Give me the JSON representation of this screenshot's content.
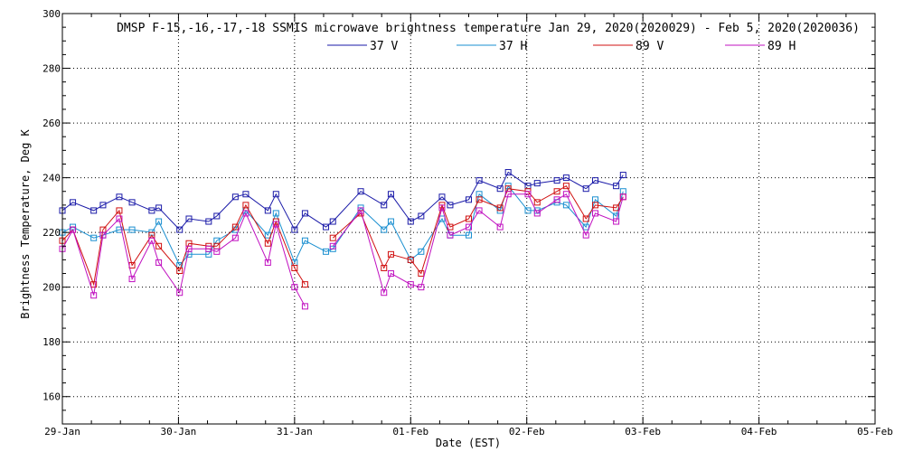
{
  "chart_data": {
    "type": "line",
    "title": "DMSP F-15,-16,-17,-18 SSMIS microwave brightness temperature Jan 29, 2020(2020029) - Feb  5, 2020(2020036)",
    "xlabel": "Date (EST)",
    "ylabel": "Brightness Temperature, Deg K",
    "xlim": [
      0,
      7
    ],
    "ylim": [
      150,
      300
    ],
    "xticks": [
      0,
      1,
      2,
      3,
      4,
      5,
      6,
      7
    ],
    "xtick_labels": [
      "29-Jan",
      "30-Jan",
      "31-Jan",
      "01-Feb",
      "02-Feb",
      "03-Feb",
      "04-Feb",
      "05-Feb"
    ],
    "yticks": [
      160,
      180,
      200,
      220,
      240,
      260,
      280,
      300
    ],
    "ytick_labels": [
      "160",
      "180",
      "200",
      "220",
      "240",
      "260",
      "280",
      "300"
    ],
    "grid": true,
    "legend_position": "top",
    "series": [
      {
        "name": "37 V",
        "color": "#1a1aa8",
        "segments": [
          [
            [
              0.0,
              228
            ],
            [
              0.09,
              231
            ],
            [
              0.27,
              228
            ],
            [
              0.35,
              230
            ],
            [
              0.49,
              233
            ],
            [
              0.6,
              231
            ],
            [
              0.77,
              228
            ],
            [
              0.83,
              229
            ],
            [
              1.01,
              221
            ],
            [
              1.09,
              225
            ],
            [
              1.26,
              224
            ],
            [
              1.33,
              226
            ],
            [
              1.49,
              233
            ],
            [
              1.58,
              234
            ],
            [
              1.77,
              228
            ],
            [
              1.84,
              234
            ],
            [
              2.0,
              221
            ],
            [
              2.09,
              227
            ],
            [
              2.27,
              222
            ],
            [
              2.33,
              224
            ],
            [
              2.57,
              235
            ],
            [
              2.77,
              230
            ],
            [
              2.83,
              234
            ],
            [
              3.0,
              224
            ],
            [
              3.09,
              226
            ],
            [
              3.27,
              233
            ],
            [
              3.34,
              230
            ],
            [
              3.5,
              232
            ],
            [
              3.59,
              239
            ],
            [
              3.77,
              236
            ],
            [
              3.84,
              242
            ],
            [
              4.01,
              237
            ],
            [
              4.09,
              238
            ],
            [
              4.26,
              239
            ],
            [
              4.34,
              240
            ],
            [
              4.51,
              236
            ],
            [
              4.59,
              239
            ],
            [
              4.77,
              237
            ],
            [
              4.83,
              241
            ]
          ]
        ]
      },
      {
        "name": "37 H",
        "color": "#1a8fd0",
        "segments": [
          [
            [
              0.0,
              220
            ],
            [
              0.09,
              222
            ],
            [
              0.27,
              218
            ],
            [
              0.35,
              219
            ],
            [
              0.49,
              221
            ],
            [
              0.6,
              221
            ],
            [
              0.77,
              220
            ],
            [
              0.83,
              224
            ],
            [
              1.01,
              208
            ],
            [
              1.09,
              212
            ],
            [
              1.26,
              212
            ],
            [
              1.33,
              217
            ],
            [
              1.49,
              221
            ],
            [
              1.58,
              228
            ],
            [
              1.77,
              219
            ],
            [
              1.84,
              227
            ],
            [
              2.0,
              209
            ],
            [
              2.09,
              217
            ],
            [
              2.27,
              213
            ],
            [
              2.33,
              214
            ],
            [
              2.57,
              229
            ],
            [
              2.77,
              221
            ],
            [
              2.83,
              224
            ],
            [
              3.0,
              210
            ],
            [
              3.09,
              213
            ],
            [
              3.27,
              225
            ],
            [
              3.34,
              219
            ],
            [
              3.5,
              219
            ],
            [
              3.59,
              234
            ],
            [
              3.77,
              228
            ],
            [
              3.84,
              237
            ],
            [
              4.01,
              228
            ],
            [
              4.09,
              228
            ],
            [
              4.26,
              231
            ],
            [
              4.34,
              230
            ],
            [
              4.51,
              222
            ],
            [
              4.59,
              232
            ],
            [
              4.77,
              226
            ],
            [
              4.83,
              235
            ]
          ]
        ]
      },
      {
        "name": "89 V",
        "color": "#d01010",
        "segments": [
          [
            [
              0.0,
              217
            ],
            [
              0.09,
              221
            ],
            [
              0.27,
              201
            ],
            [
              0.35,
              221
            ],
            [
              0.49,
              228
            ],
            [
              0.6,
              208
            ],
            [
              0.77,
              219
            ],
            [
              0.83,
              215
            ],
            [
              1.01,
              206
            ],
            [
              1.09,
              216
            ],
            [
              1.26,
              215
            ],
            [
              1.33,
              215
            ],
            [
              1.49,
              222
            ],
            [
              1.58,
              230
            ],
            [
              1.77,
              216
            ],
            [
              1.84,
              224
            ],
            [
              2.0,
              207
            ],
            [
              2.09,
              201
            ]
          ],
          [
            [
              2.33,
              218
            ],
            [
              2.57,
              227
            ],
            [
              2.77,
              207
            ],
            [
              2.83,
              212
            ],
            [
              3.0,
              210
            ],
            [
              3.09,
              205
            ],
            [
              3.27,
              230
            ],
            [
              3.34,
              222
            ],
            [
              3.5,
              225
            ],
            [
              3.59,
              232
            ],
            [
              3.77,
              229
            ],
            [
              3.84,
              236
            ],
            [
              4.01,
              235
            ],
            [
              4.09,
              231
            ],
            [
              4.26,
              235
            ],
            [
              4.34,
              237
            ],
            [
              4.51,
              225
            ],
            [
              4.59,
              230
            ],
            [
              4.77,
              229
            ],
            [
              4.83,
              233
            ]
          ]
        ]
      },
      {
        "name": "89 H",
        "color": "#c010c0",
        "segments": [
          [
            [
              0.0,
              214
            ],
            [
              0.09,
              221
            ],
            [
              0.27,
              197
            ],
            [
              0.35,
              219
            ],
            [
              0.49,
              225
            ],
            [
              0.6,
              203
            ],
            [
              0.77,
              217
            ],
            [
              0.83,
              209
            ],
            [
              1.01,
              198
            ],
            [
              1.09,
              214
            ],
            [
              1.26,
              214
            ],
            [
              1.33,
              213
            ],
            [
              1.49,
              218
            ],
            [
              1.58,
              227
            ],
            [
              1.77,
              209
            ],
            [
              1.84,
              223
            ],
            [
              2.0,
              200
            ],
            [
              2.09,
              193
            ]
          ],
          [
            [
              2.33,
              215
            ],
            [
              2.57,
              228
            ],
            [
              2.77,
              198
            ],
            [
              2.83,
              205
            ],
            [
              3.0,
              201
            ],
            [
              3.09,
              200
            ],
            [
              3.27,
              229
            ],
            [
              3.34,
              219
            ],
            [
              3.5,
              222
            ],
            [
              3.59,
              228
            ],
            [
              3.77,
              222
            ],
            [
              3.84,
              234
            ],
            [
              4.01,
              234
            ],
            [
              4.09,
              227
            ],
            [
              4.26,
              232
            ],
            [
              4.34,
              234
            ],
            [
              4.51,
              219
            ],
            [
              4.59,
              227
            ],
            [
              4.77,
              224
            ],
            [
              4.83,
              233
            ]
          ]
        ]
      }
    ]
  }
}
